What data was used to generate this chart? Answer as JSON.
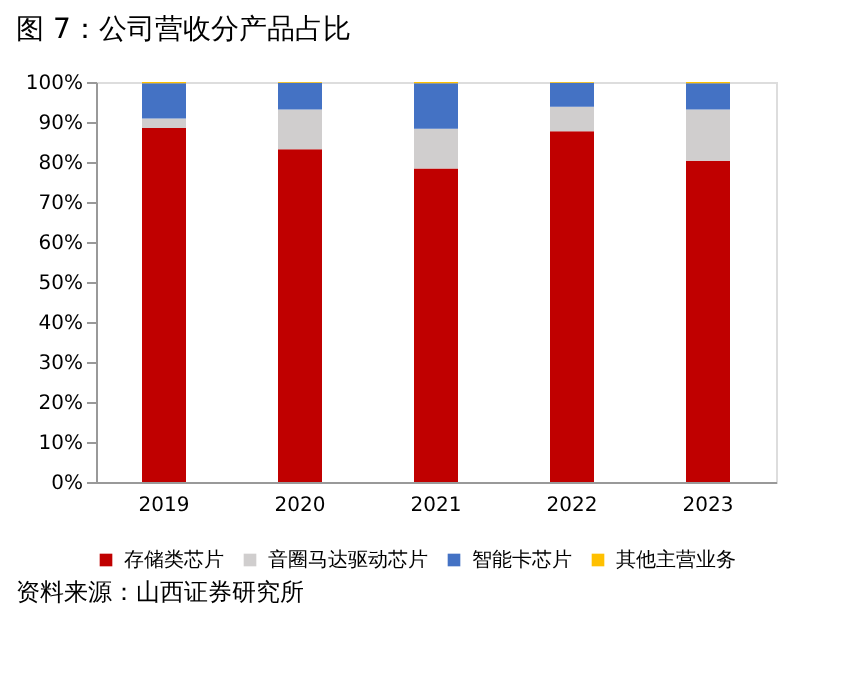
{
  "chart_data": {
    "type": "bar",
    "stacked": true,
    "title": "图 7：公司营收分产品占比",
    "categories": [
      "2019",
      "2020",
      "2021",
      "2022",
      "2023"
    ],
    "series": [
      {
        "name": "存储类芯片",
        "color": "#c00000",
        "values": [
          88.5,
          83.2,
          78.4,
          87.7,
          80.3
        ]
      },
      {
        "name": "音圈马达驱动芯片",
        "color": "#d0cece",
        "values": [
          2.4,
          9.9,
          9.9,
          6.1,
          12.8
        ]
      },
      {
        "name": "智能卡芯片",
        "color": "#4472c4",
        "values": [
          8.8,
          6.7,
          11.4,
          6.0,
          6.6
        ]
      },
      {
        "name": "其他主营业务",
        "color": "#ffc000",
        "values": [
          0.3,
          0.2,
          0.3,
          0.2,
          0.3
        ]
      }
    ],
    "ylim": [
      0,
      100
    ],
    "yticks": [
      {
        "value": 0,
        "label": "0%"
      },
      {
        "value": 10,
        "label": "10%"
      },
      {
        "value": 20,
        "label": "20%"
      },
      {
        "value": 30,
        "label": "30%"
      },
      {
        "value": 40,
        "label": "40%"
      },
      {
        "value": 50,
        "label": "50%"
      },
      {
        "value": 60,
        "label": "60%"
      },
      {
        "value": 70,
        "label": "70%"
      },
      {
        "value": 80,
        "label": "80%"
      },
      {
        "value": 90,
        "label": "90%"
      },
      {
        "value": 100,
        "label": "100%"
      }
    ],
    "grid": false,
    "legend": "bottom",
    "annotations": [
      "资料来源：山西证券研究所"
    ]
  }
}
